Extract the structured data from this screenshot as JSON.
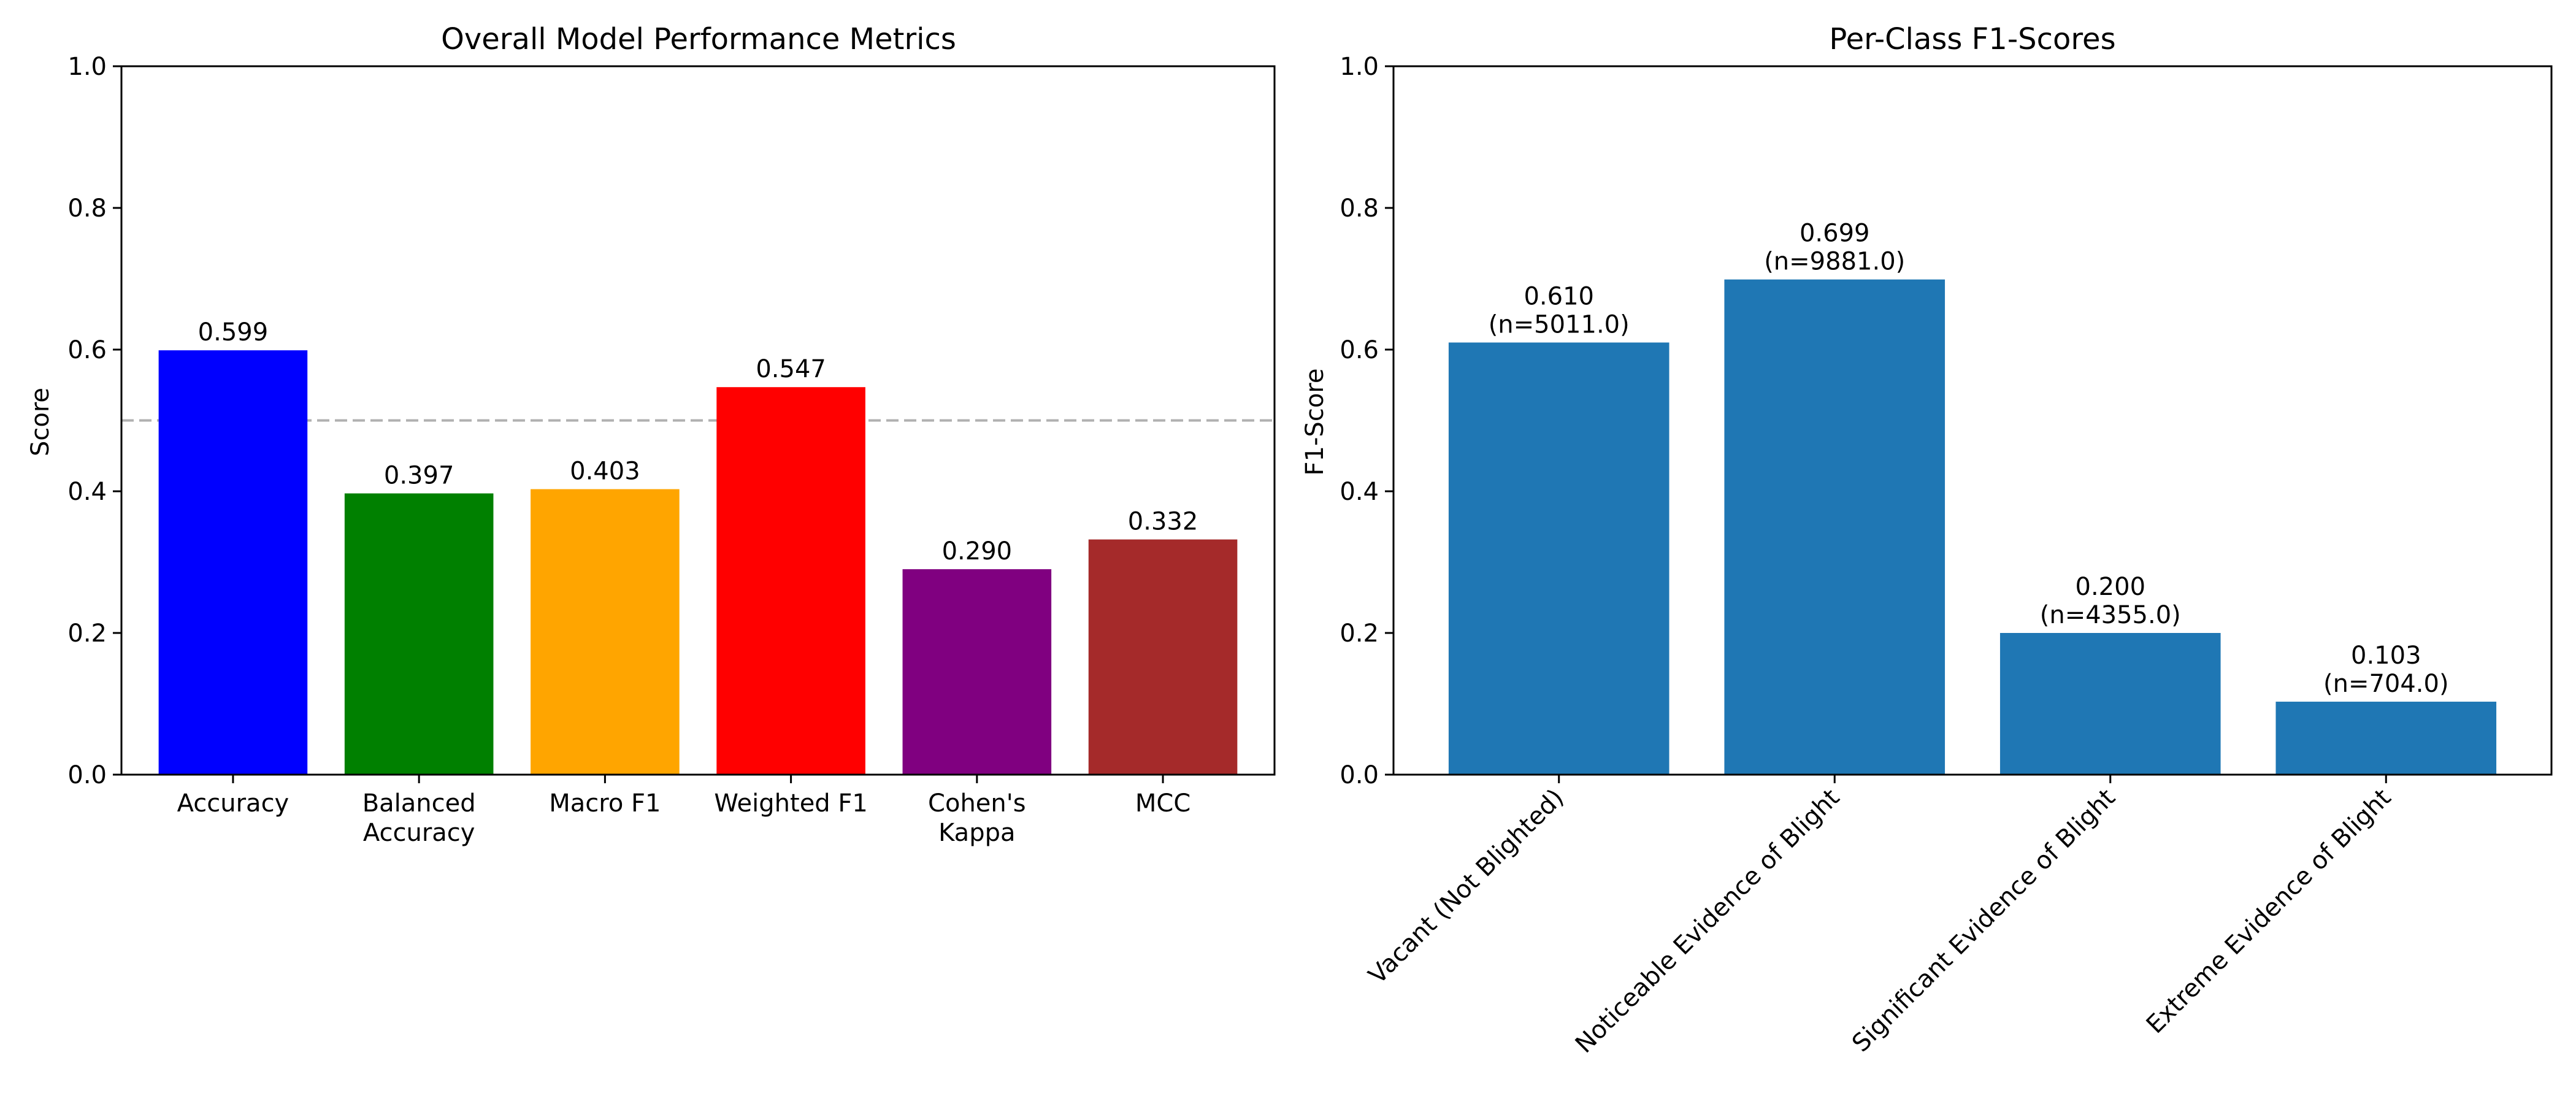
{
  "chart_data": [
    {
      "type": "bar",
      "title": "Overall Model Performance Metrics",
      "xlabel": "",
      "ylabel": "Score",
      "ylim": [
        0,
        1.0
      ],
      "yticks": [
        "0.0",
        "0.2",
        "0.4",
        "0.6",
        "0.8",
        "1.0"
      ],
      "ytick_values": [
        0,
        0.2,
        0.4,
        0.6,
        0.8,
        1.0
      ],
      "reference_line": {
        "value": 0.5,
        "style": "dashed",
        "color": "#b0b0b0"
      },
      "categories": [
        [
          "Accuracy"
        ],
        [
          "Balanced",
          "Accuracy"
        ],
        [
          "Macro F1"
        ],
        [
          "Weighted F1"
        ],
        [
          "Cohen's",
          "Kappa"
        ],
        [
          "MCC"
        ]
      ],
      "values": [
        0.599,
        0.397,
        0.403,
        0.547,
        0.29,
        0.332
      ],
      "value_labels": [
        [
          "0.599"
        ],
        [
          "0.397"
        ],
        [
          "0.403"
        ],
        [
          "0.547"
        ],
        [
          "0.290"
        ],
        [
          "0.332"
        ]
      ],
      "colors": [
        "#0000ff",
        "#008000",
        "#ffa500",
        "#ff0000",
        "#800080",
        "#a52a2a"
      ],
      "label_rotation": 0
    },
    {
      "type": "bar",
      "title": "Per-Class F1-Scores",
      "xlabel": "",
      "ylabel": "F1-Score",
      "ylim": [
        0,
        1.0
      ],
      "yticks": [
        "0.0",
        "0.2",
        "0.4",
        "0.6",
        "0.8",
        "1.0"
      ],
      "ytick_values": [
        0,
        0.2,
        0.4,
        0.6,
        0.8,
        1.0
      ],
      "categories": [
        [
          "Vacant (Not Blighted)"
        ],
        [
          "Noticeable Evidence of Blight"
        ],
        [
          "Significant Evidence of Blight"
        ],
        [
          "Extreme Evidence of Blight"
        ]
      ],
      "values": [
        0.61,
        0.699,
        0.2,
        0.103
      ],
      "support": [
        5011.0,
        9881.0,
        4355.0,
        704.0
      ],
      "value_labels": [
        [
          "0.610",
          "(n=5011.0)"
        ],
        [
          "0.699",
          "(n=9881.0)"
        ],
        [
          "0.200",
          "(n=4355.0)"
        ],
        [
          "0.103",
          "(n=704.0)"
        ]
      ],
      "colors": [
        "#1f77b4",
        "#1f77b4",
        "#1f77b4",
        "#1f77b4"
      ],
      "label_rotation": -45
    }
  ]
}
